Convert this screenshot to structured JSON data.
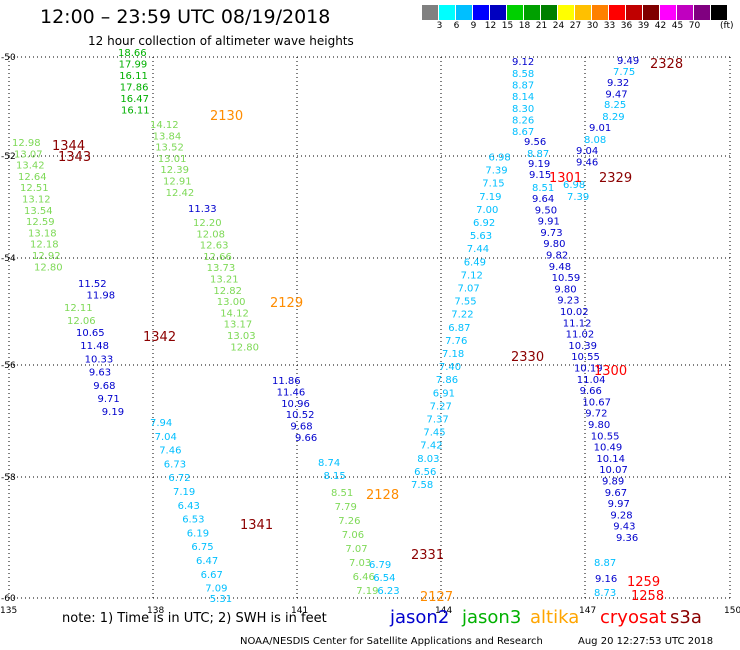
{
  "header": {
    "title": "12:00 – 23:59 UTC 08/19/2018",
    "subtitle": "12 hour collection of altimeter wave heights"
  },
  "colorbar": {
    "unit": "(ft)",
    "colors": [
      "#808080",
      "#00ffff",
      "#00bfff",
      "#0000ff",
      "#0000c0",
      "#00d000",
      "#00a000",
      "#008000",
      "#ffff00",
      "#ffc000",
      "#ff8000",
      "#ff0000",
      "#c00000",
      "#800000",
      "#ff00ff",
      "#c000c0",
      "#800080",
      "#000000"
    ],
    "labels": [
      "3",
      "6",
      "9",
      "12",
      "15",
      "18",
      "21",
      "24",
      "27",
      "30",
      "33",
      "36",
      "39",
      "42",
      "45",
      "70"
    ]
  },
  "axes": {
    "lon_ticks": [
      "135",
      "138",
      "141",
      "144",
      "147",
      "150"
    ],
    "lat_ticks": [
      "-50",
      "-52",
      "-54",
      "-56",
      "-58",
      "-60"
    ]
  },
  "track_times": [
    {
      "text": "2328",
      "color": "#8b0000"
    },
    {
      "text": "2130",
      "color": "#ff8c00"
    },
    {
      "text": "1344",
      "color": "#8b0000"
    },
    {
      "text": "1343",
      "color": "#8b0000"
    },
    {
      "text": "2329",
      "color": "#8b0000"
    },
    {
      "text": "1301",
      "color": "#ff0000"
    },
    {
      "text": "2129",
      "color": "#ff8c00"
    },
    {
      "text": "1342",
      "color": "#8b0000"
    },
    {
      "text": "2330",
      "color": "#8b0000"
    },
    {
      "text": "1300",
      "color": "#ff0000"
    },
    {
      "text": "2128",
      "color": "#ff8c00"
    },
    {
      "text": "1341",
      "color": "#8b0000"
    },
    {
      "text": "2331",
      "color": "#8b0000"
    },
    {
      "text": "2127",
      "color": "#ff8c00"
    },
    {
      "text": "1259",
      "color": "#ff0000"
    },
    {
      "text": "1258",
      "color": "#ff0000"
    }
  ],
  "tracks": [
    {
      "color": "#00b000",
      "values": [
        "18.66",
        "17.99",
        "16.11",
        "17.86",
        "16.47",
        "16.11"
      ]
    },
    {
      "color": "#7ed957",
      "values": [
        "14.12",
        "13.84",
        "13.52",
        "13.01",
        "12.39",
        "12.91",
        "12.42"
      ]
    },
    {
      "color": "#0000cd",
      "values": [
        "11.33"
      ]
    },
    {
      "color": "#7ed957",
      "values": [
        "12.20",
        "12.08",
        "12.63",
        "12.66",
        "13.73",
        "13.21",
        "12.82",
        "13.00",
        "14.12",
        "13.17",
        "13.03",
        "12.80"
      ]
    },
    {
      "color": "#0000cd",
      "values": [
        "11.86",
        "11.46",
        "10.96",
        "10.52",
        "9.68",
        "9.66"
      ]
    },
    {
      "color": "#00bfff",
      "values": [
        "8.74",
        "8.15"
      ]
    },
    {
      "color": "#7ed957",
      "values": [
        "8.51",
        "7.79",
        "7.26",
        "7.06",
        "7.07",
        "7.03",
        "6.46",
        "7.19"
      ]
    },
    {
      "color": "#00bfff",
      "values": [
        "6.79",
        "6.54",
        "6.23"
      ]
    },
    {
      "color": "#7ed957",
      "values": [
        "12.98",
        "13.07",
        "13.42",
        "12.64",
        "12.51",
        "13.12",
        "13.54",
        "12.59",
        "13.18",
        "12.18",
        "12.92",
        "12.80"
      ]
    },
    {
      "color": "#0000cd",
      "values": [
        "11.52",
        "11.98"
      ]
    },
    {
      "color": "#7ed957",
      "values": [
        "12.11",
        "12.06"
      ]
    },
    {
      "color": "#0000cd",
      "values": [
        "10.65",
        "11.48",
        "10.33",
        "9.63",
        "9.68",
        "9.71",
        "9.19"
      ]
    },
    {
      "color": "#00bfff",
      "values": [
        "7.94",
        "7.04",
        "7.46",
        "6.73",
        "6.72",
        "7.19",
        "6.43",
        "6.53",
        "6.19",
        "6.75",
        "6.47",
        "6.67",
        "7.09",
        "5.31"
      ]
    },
    {
      "color": "#00bfff",
      "values": [
        "7.58",
        "6.56",
        "8.03",
        "7.42",
        "7.45",
        "7.37",
        "7.27",
        "6.91",
        "7.86",
        "7.40",
        "7.18",
        "7.76",
        "6.87",
        "7.22",
        "7.55",
        "7.07",
        "7.12",
        "6.49",
        "7.44",
        "5.63",
        "6.92",
        "7.00",
        "7.19",
        "7.15",
        "7.39",
        "6.98"
      ]
    },
    {
      "color": "#0000cd",
      "values": [
        "9.12"
      ]
    },
    {
      "color": "#00bfff",
      "values": [
        "8.58",
        "8.87",
        "8.14",
        "8.30",
        "8.26",
        "8.67"
      ]
    },
    {
      "color": "#0000cd",
      "values": [
        "9.56"
      ]
    },
    {
      "color": "#00bfff",
      "values": [
        "8.87"
      ]
    },
    {
      "color": "#0000cd",
      "values": [
        "9.19",
        "9.15"
      ]
    },
    {
      "color": "#00bfff",
      "values": [
        "8.51"
      ]
    },
    {
      "color": "#0000cd",
      "values": [
        "9.64",
        "9.50",
        "9.91",
        "9.73",
        "9.80",
        "9.82",
        "9.48",
        "10.59",
        "9.80",
        "9.23",
        "10.02",
        "11.12",
        "11.02",
        "10.39",
        "10.55",
        "10.19",
        "11.04",
        "9.66",
        "10.67",
        "9.72",
        "9.80",
        "10.55",
        "10.49",
        "10.14",
        "10.07",
        "9.89",
        "9.67",
        "9.97",
        "9.28",
        "9.43",
        "9.36"
      ]
    },
    {
      "color": "#00bfff",
      "values": [
        "8.87"
      ]
    },
    {
      "color": "#0000cd",
      "values": [
        "9.16"
      ]
    },
    {
      "color": "#00bfff",
      "values": [
        "8.73"
      ]
    },
    {
      "color": "#0000cd",
      "values": [
        "9.49"
      ]
    },
    {
      "color": "#00bfff",
      "values": [
        "7.75"
      ]
    },
    {
      "color": "#0000cd",
      "values": [
        "9.32",
        "9.47"
      ]
    },
    {
      "color": "#00bfff",
      "values": [
        "8.25",
        "8.29"
      ]
    },
    {
      "color": "#0000cd",
      "values": [
        "9.01"
      ]
    },
    {
      "color": "#00bfff",
      "values": [
        "8.08"
      ]
    },
    {
      "color": "#0000cd",
      "values": [
        "9.04",
        "9.46"
      ]
    },
    {
      "color": "#00bfff",
      "values": [
        "6.98",
        "7.39"
      ]
    }
  ],
  "note": "note:  1) Time is in UTC;  2) SWH is in feet",
  "legend": [
    {
      "name": "jason2",
      "color": "#0000cd"
    },
    {
      "name": "jason3",
      "color": "#00b000"
    },
    {
      "name": "altika",
      "color": "#ffa500"
    },
    {
      "name": "cryosat",
      "color": "#ff0000"
    },
    {
      "name": "s3a",
      "color": "#8b0000"
    }
  ],
  "footer": {
    "credit": "NOAA/NESDIS Center for Satellite Applications and Research",
    "generated": "Aug 20 12:27:53 UTC 2018"
  }
}
